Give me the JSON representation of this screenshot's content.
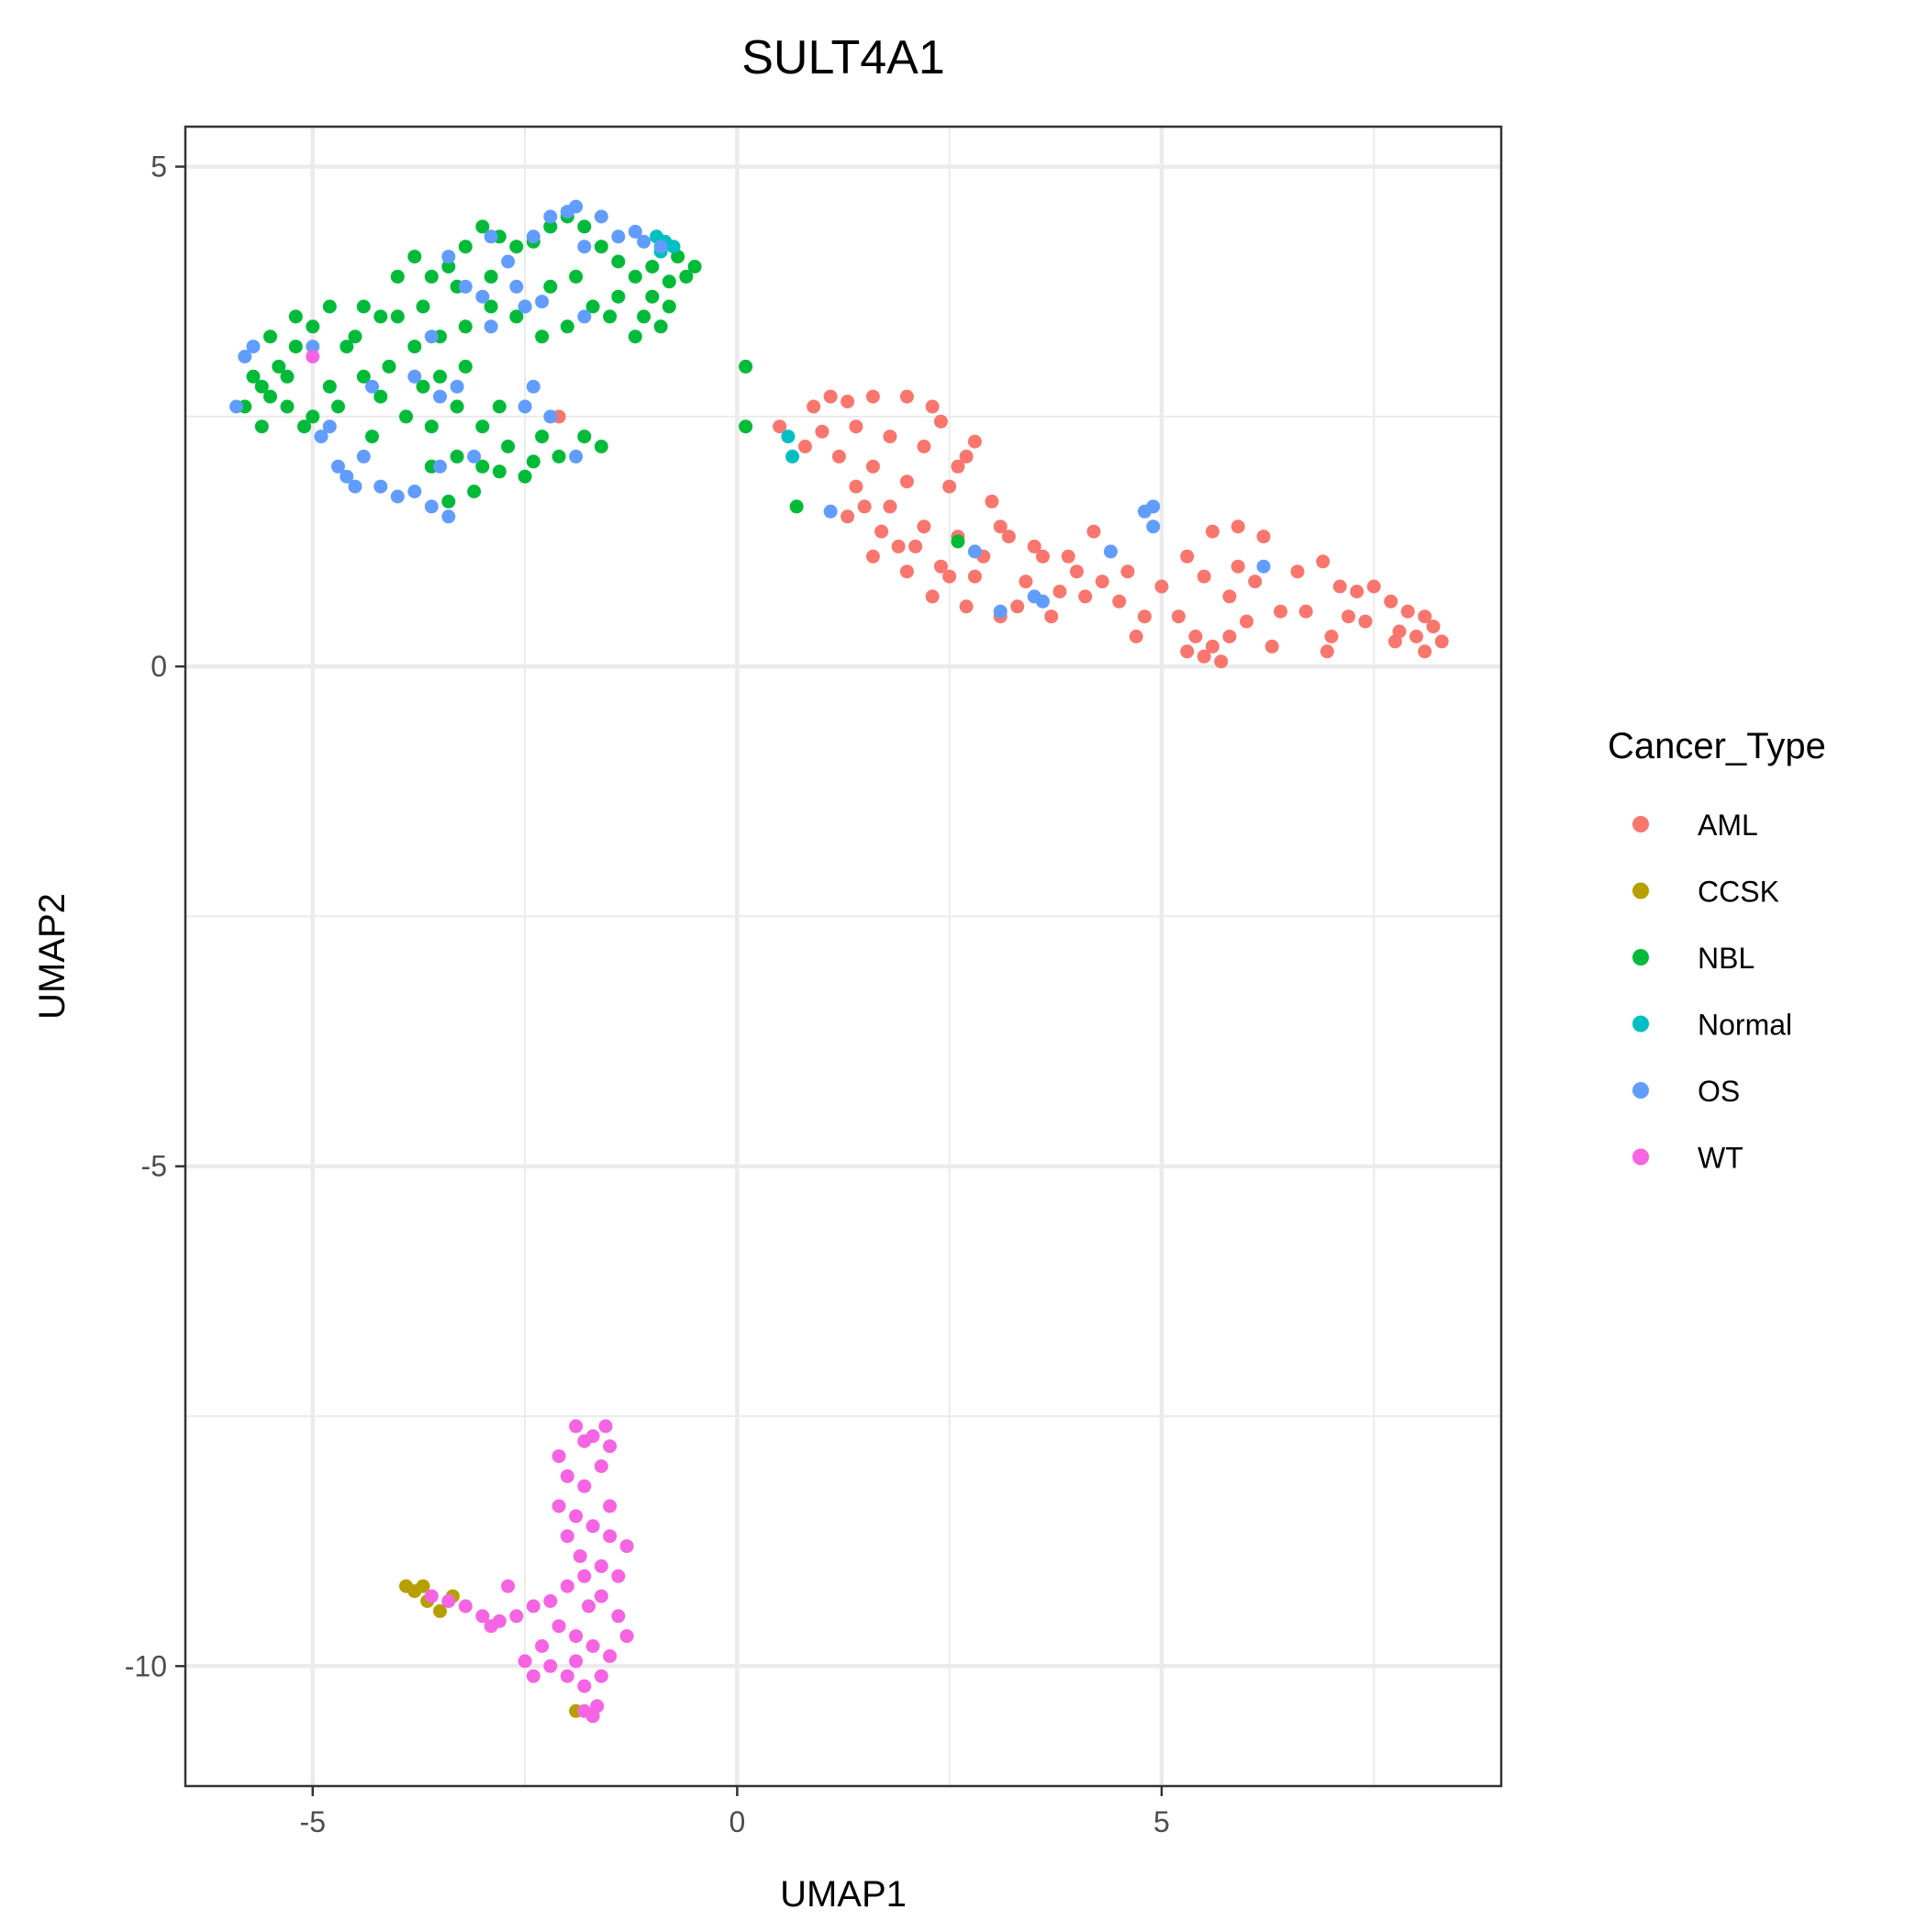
{
  "chart_data": {
    "type": "scatter",
    "title": "SULT4A1",
    "xlabel": "UMAP1",
    "ylabel": "UMAP2",
    "xlim": [
      -6.5,
      9.0
    ],
    "ylim": [
      -11.2,
      5.4
    ],
    "xticks": [
      -5,
      0,
      5
    ],
    "xtick_labels": [
      "-5",
      "0",
      "5"
    ],
    "yticks": [
      5,
      0,
      -5,
      -10
    ],
    "ytick_labels": [
      "5",
      "0",
      "-5",
      "-10"
    ],
    "grid": true,
    "legend": {
      "title": "Cancer_Type",
      "position": "right"
    },
    "series": [
      {
        "name": "AML",
        "color": "#F8766D",
        "points": [
          [
            0.9,
            2.6
          ],
          [
            1.1,
            2.7
          ],
          [
            1.3,
            2.65
          ],
          [
            1.6,
            2.7
          ],
          [
            2.0,
            2.7
          ],
          [
            2.4,
            2.45
          ],
          [
            2.8,
            2.25
          ],
          [
            1.4,
            2.4
          ],
          [
            1.8,
            2.3
          ],
          [
            2.2,
            2.2
          ],
          [
            2.6,
            2.0
          ],
          [
            1.2,
            2.1
          ],
          [
            1.6,
            2.0
          ],
          [
            2.0,
            1.85
          ],
          [
            2.5,
            1.8
          ],
          [
            3.0,
            1.65
          ],
          [
            3.1,
            1.4
          ],
          [
            1.4,
            1.8
          ],
          [
            1.8,
            1.6
          ],
          [
            2.2,
            1.4
          ],
          [
            2.6,
            1.3
          ],
          [
            3.2,
            1.3
          ],
          [
            3.6,
            1.1
          ],
          [
            1.3,
            1.5
          ],
          [
            1.7,
            1.35
          ],
          [
            2.1,
            1.2
          ],
          [
            2.4,
            1.0
          ],
          [
            2.8,
            0.9
          ],
          [
            3.4,
            0.85
          ],
          [
            3.8,
            0.75
          ],
          [
            1.6,
            1.1
          ],
          [
            2.0,
            0.95
          ],
          [
            2.3,
            0.7
          ],
          [
            2.7,
            0.6
          ],
          [
            3.3,
            0.6
          ],
          [
            3.7,
            0.5
          ],
          [
            4.0,
            0.95
          ],
          [
            4.3,
            0.85
          ],
          [
            4.5,
            0.65
          ],
          [
            4.8,
            0.5
          ],
          [
            1.9,
            1.2
          ],
          [
            2.9,
            1.1
          ],
          [
            3.5,
            1.2
          ],
          [
            4.2,
            1.35
          ],
          [
            4.6,
            0.95
          ],
          [
            5.0,
            0.8
          ],
          [
            5.3,
            1.1
          ],
          [
            5.6,
            1.35
          ],
          [
            5.9,
            1.4
          ],
          [
            6.2,
            1.3
          ],
          [
            5.5,
            0.9
          ],
          [
            5.8,
            0.7
          ],
          [
            6.1,
            0.85
          ],
          [
            6.4,
            0.55
          ],
          [
            6.7,
            0.55
          ],
          [
            5.2,
            0.5
          ],
          [
            5.4,
            0.3
          ],
          [
            5.6,
            0.2
          ],
          [
            5.8,
            0.3
          ],
          [
            5.5,
            0.1
          ],
          [
            5.7,
            0.05
          ],
          [
            5.3,
            0.15
          ],
          [
            6.0,
            0.45
          ],
          [
            6.3,
            0.2
          ],
          [
            6.9,
            1.05
          ],
          [
            7.1,
            0.8
          ],
          [
            7.3,
            0.75
          ],
          [
            7.5,
            0.8
          ],
          [
            7.2,
            0.5
          ],
          [
            7.0,
            0.3
          ],
          [
            7.4,
            0.45
          ],
          [
            6.95,
            0.15
          ],
          [
            7.7,
            0.65
          ],
          [
            7.9,
            0.55
          ],
          [
            8.1,
            0.5
          ],
          [
            7.8,
            0.35
          ],
          [
            8.0,
            0.3
          ],
          [
            8.2,
            0.4
          ],
          [
            8.3,
            0.25
          ],
          [
            7.75,
            0.25
          ],
          [
            8.1,
            0.15
          ],
          [
            0.5,
            2.4
          ],
          [
            0.8,
            2.2
          ],
          [
            4.7,
            0.3
          ],
          [
            3.9,
            1.1
          ],
          [
            4.1,
            0.7
          ],
          [
            3.1,
            0.5
          ],
          [
            2.5,
            0.9
          ],
          [
            1.5,
            1.6
          ],
          [
            1.0,
            2.35
          ],
          [
            2.3,
            2.6
          ],
          [
            2.7,
            2.1
          ],
          [
            5.9,
            1.0
          ],
          [
            6.6,
            0.95
          ],
          [
            -2.1,
            2.5
          ]
        ]
      },
      {
        "name": "CCSK",
        "color": "#B79F00",
        "points": [
          [
            -3.9,
            -9.2
          ],
          [
            -3.8,
            -9.25
          ],
          [
            -3.65,
            -9.35
          ],
          [
            -3.5,
            -9.45
          ],
          [
            -3.35,
            -9.3
          ],
          [
            -3.7,
            -9.2
          ],
          [
            -1.9,
            -10.45
          ]
        ]
      },
      {
        "name": "NBL",
        "color": "#00BA38",
        "points": [
          [
            -5.8,
            2.6
          ],
          [
            -5.6,
            2.8
          ],
          [
            -5.4,
            3.0
          ],
          [
            -5.2,
            3.2
          ],
          [
            -5.0,
            3.4
          ],
          [
            -5.5,
            3.3
          ],
          [
            -5.3,
            2.6
          ],
          [
            -5.1,
            2.4
          ],
          [
            -4.8,
            2.8
          ],
          [
            -4.6,
            3.2
          ],
          [
            -4.4,
            3.6
          ],
          [
            -4.2,
            3.5
          ],
          [
            -4.0,
            3.9
          ],
          [
            -3.8,
            4.1
          ],
          [
            -3.6,
            3.9
          ],
          [
            -3.4,
            4.0
          ],
          [
            -3.2,
            4.2
          ],
          [
            -3.0,
            4.4
          ],
          [
            -2.8,
            4.3
          ],
          [
            -2.6,
            4.2
          ],
          [
            -2.4,
            4.25
          ],
          [
            -2.2,
            4.4
          ],
          [
            -2.0,
            4.5
          ],
          [
            -1.8,
            4.4
          ],
          [
            -1.6,
            4.2
          ],
          [
            -1.4,
            4.05
          ],
          [
            -1.2,
            3.9
          ],
          [
            -1.0,
            4.0
          ],
          [
            -0.8,
            3.85
          ],
          [
            -0.6,
            3.9
          ],
          [
            -0.8,
            3.6
          ],
          [
            -1.1,
            3.5
          ],
          [
            -1.4,
            3.7
          ],
          [
            -1.7,
            3.6
          ],
          [
            -2.0,
            3.4
          ],
          [
            -2.3,
            3.3
          ],
          [
            -2.6,
            3.5
          ],
          [
            -2.9,
            3.6
          ],
          [
            -3.2,
            3.4
          ],
          [
            -3.5,
            3.3
          ],
          [
            -3.8,
            3.2
          ],
          [
            -4.1,
            3.0
          ],
          [
            -4.4,
            2.9
          ],
          [
            -4.7,
            2.6
          ],
          [
            -5.0,
            2.5
          ],
          [
            -5.6,
            2.4
          ],
          [
            -4.2,
            2.7
          ],
          [
            -3.9,
            2.5
          ],
          [
            -3.6,
            2.4
          ],
          [
            -3.3,
            2.6
          ],
          [
            -3.0,
            2.4
          ],
          [
            -2.7,
            2.2
          ],
          [
            -2.4,
            2.05
          ],
          [
            -2.1,
            2.1
          ],
          [
            -1.8,
            2.3
          ],
          [
            -2.5,
            1.9
          ],
          [
            -2.8,
            1.95
          ],
          [
            -3.1,
            1.75
          ],
          [
            -3.3,
            2.1
          ],
          [
            -3.6,
            2.0
          ],
          [
            -3.4,
            1.65
          ],
          [
            -3.0,
            2.0
          ],
          [
            -2.3,
            2.3
          ],
          [
            -1.6,
            2.2
          ],
          [
            -3.7,
            2.8
          ],
          [
            -3.5,
            2.9
          ],
          [
            -3.2,
            3.0
          ],
          [
            -2.8,
            2.6
          ],
          [
            -4.8,
            3.6
          ],
          [
            -5.2,
            3.5
          ],
          [
            -5.7,
            2.9
          ],
          [
            -4.5,
            3.3
          ],
          [
            -4.0,
            3.5
          ],
          [
            -3.7,
            3.6
          ],
          [
            -3.3,
            3.8
          ],
          [
            -2.9,
            3.9
          ],
          [
            -2.5,
            3.6
          ],
          [
            -2.2,
            3.8
          ],
          [
            -1.9,
            3.9
          ],
          [
            -1.5,
            3.5
          ],
          [
            -1.2,
            3.3
          ],
          [
            -0.9,
            3.4
          ],
          [
            -1.0,
            3.7
          ],
          [
            -0.7,
            4.1
          ],
          [
            -0.5,
            4.0
          ],
          [
            -4.3,
            2.3
          ],
          [
            -5.3,
            2.9
          ],
          [
            -5.5,
            2.7
          ],
          [
            0.1,
            3.0
          ],
          [
            0.1,
            2.4
          ],
          [
            0.7,
            1.6
          ],
          [
            2.6,
            1.25
          ]
        ]
      },
      {
        "name": "Normal",
        "color": "#00BFC4",
        "points": [
          [
            -0.95,
            4.3
          ],
          [
            -0.85,
            4.25
          ],
          [
            -0.75,
            4.2
          ],
          [
            -0.9,
            4.15
          ],
          [
            0.6,
            2.3
          ],
          [
            0.65,
            2.1
          ]
        ]
      },
      {
        "name": "OS",
        "color": "#619CFF",
        "points": [
          [
            -5.8,
            3.1
          ],
          [
            -5.7,
            3.2
          ],
          [
            -5.9,
            2.6
          ],
          [
            -5.0,
            3.2
          ],
          [
            -4.8,
            2.4
          ],
          [
            -4.9,
            2.3
          ],
          [
            -4.7,
            2.0
          ],
          [
            -4.6,
            1.9
          ],
          [
            -4.5,
            1.8
          ],
          [
            -4.4,
            2.1
          ],
          [
            -4.2,
            1.8
          ],
          [
            -4.0,
            1.7
          ],
          [
            -3.8,
            1.75
          ],
          [
            -3.6,
            1.6
          ],
          [
            -3.4,
            1.5
          ],
          [
            -3.5,
            2.0
          ],
          [
            -3.8,
            2.9
          ],
          [
            -3.6,
            3.3
          ],
          [
            -3.5,
            2.7
          ],
          [
            -3.3,
            2.8
          ],
          [
            -3.1,
            2.1
          ],
          [
            -2.9,
            4.3
          ],
          [
            -2.7,
            4.05
          ],
          [
            -2.6,
            3.8
          ],
          [
            -2.5,
            3.6
          ],
          [
            -2.3,
            3.65
          ],
          [
            -2.2,
            4.5
          ],
          [
            -2.0,
            4.55
          ],
          [
            -1.9,
            4.6
          ],
          [
            -1.8,
            4.2
          ],
          [
            -1.6,
            4.5
          ],
          [
            -1.4,
            4.3
          ],
          [
            -1.2,
            4.35
          ],
          [
            -1.1,
            4.25
          ],
          [
            -0.9,
            4.2
          ],
          [
            -1.8,
            3.5
          ],
          [
            -2.4,
            4.3
          ],
          [
            -3.4,
            4.1
          ],
          [
            -3.2,
            3.8
          ],
          [
            -3.0,
            3.7
          ],
          [
            -2.9,
            3.4
          ],
          [
            -2.5,
            2.6
          ],
          [
            -2.2,
            2.5
          ],
          [
            -2.4,
            2.8
          ],
          [
            -1.9,
            2.1
          ],
          [
            1.1,
            1.55
          ],
          [
            2.8,
            1.15
          ],
          [
            3.1,
            0.55
          ],
          [
            3.5,
            0.7
          ],
          [
            3.6,
            0.65
          ],
          [
            4.4,
            1.15
          ],
          [
            4.9,
            1.6
          ],
          [
            4.8,
            1.55
          ],
          [
            4.9,
            1.4
          ],
          [
            6.2,
            1.0
          ],
          [
            -4.3,
            2.8
          ]
        ]
      },
      {
        "name": "WT",
        "color": "#F564E3",
        "points": [
          [
            -5.0,
            3.1
          ],
          [
            -3.6,
            -9.3
          ],
          [
            -3.4,
            -9.35
          ],
          [
            -3.2,
            -9.4
          ],
          [
            -3.0,
            -9.5
          ],
          [
            -2.8,
            -9.55
          ],
          [
            -2.6,
            -9.5
          ],
          [
            -2.4,
            -9.4
          ],
          [
            -2.2,
            -9.35
          ],
          [
            -2.7,
            -9.2
          ],
          [
            -2.9,
            -9.6
          ],
          [
            -2.0,
            -9.2
          ],
          [
            -1.8,
            -9.1
          ],
          [
            -1.6,
            -9.0
          ],
          [
            -1.4,
            -9.1
          ],
          [
            -1.3,
            -8.8
          ],
          [
            -1.5,
            -8.7
          ],
          [
            -1.7,
            -8.6
          ],
          [
            -1.9,
            -8.5
          ],
          [
            -2.1,
            -8.4
          ],
          [
            -1.8,
            -8.2
          ],
          [
            -1.6,
            -8.0
          ],
          [
            -1.5,
            -7.8
          ],
          [
            -1.7,
            -7.7
          ],
          [
            -1.9,
            -7.6
          ],
          [
            -2.1,
            -7.9
          ],
          [
            -2.0,
            -8.7
          ],
          [
            -1.6,
            -9.3
          ],
          [
            -1.4,
            -9.5
          ],
          [
            -1.3,
            -9.7
          ],
          [
            -1.5,
            -9.9
          ],
          [
            -1.7,
            -9.8
          ],
          [
            -1.9,
            -9.7
          ],
          [
            -2.1,
            -9.6
          ],
          [
            -2.3,
            -9.8
          ],
          [
            -2.2,
            -10.0
          ],
          [
            -2.0,
            -10.1
          ],
          [
            -1.8,
            -10.2
          ],
          [
            -2.4,
            -10.1
          ],
          [
            -2.5,
            -9.95
          ],
          [
            -1.6,
            -10.1
          ],
          [
            -1.9,
            -9.95
          ],
          [
            -1.8,
            -10.45
          ],
          [
            -1.7,
            -10.5
          ],
          [
            -1.65,
            -10.4
          ],
          [
            -1.85,
            -8.9
          ],
          [
            -1.75,
            -9.4
          ],
          [
            -1.5,
            -8.4
          ],
          [
            -1.55,
            -7.6
          ],
          [
            -1.8,
            -7.75
          ],
          [
            -2.0,
            -8.1
          ]
        ]
      }
    ]
  }
}
